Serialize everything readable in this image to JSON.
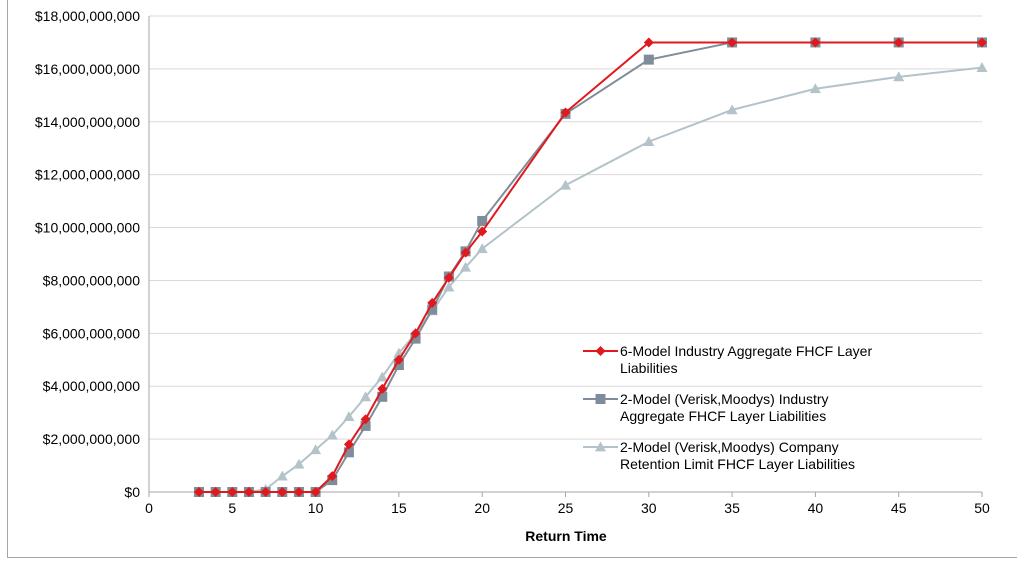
{
  "chart_data": {
    "type": "line",
    "title": "",
    "xlabel": "Return Time",
    "ylabel": "",
    "xlim": [
      0,
      50
    ],
    "ylim": [
      0,
      18000000000
    ],
    "x_ticks": [
      "0",
      "5",
      "10",
      "15",
      "20",
      "25",
      "30",
      "35",
      "40",
      "45",
      "50"
    ],
    "y_ticks": [
      "$0",
      "$2,000,000,000",
      "$4,000,000,000",
      "$6,000,000,000",
      "$8,000,000,000",
      "$10,000,000,000",
      "$12,000,000,000",
      "$14,000,000,000",
      "$16,000,000,000",
      "$18,000,000,000"
    ],
    "grid": "horizontal",
    "legend_position": "bottom-right",
    "series": [
      {
        "name": "6-Model Industry Aggregate FHCF Layer Liabilities",
        "name_lines": [
          "6-Model Industry Aggregate FHCF Layer",
          "Liabilities"
        ],
        "color": "#e0191f",
        "marker": "diamond",
        "x": [
          3,
          4,
          5,
          6,
          7,
          8,
          9,
          10,
          11,
          12,
          13,
          14,
          15,
          16,
          17,
          18,
          19,
          20,
          25,
          30,
          35,
          40,
          45,
          50
        ],
        "y": [
          0,
          0,
          0,
          0,
          0,
          0,
          0,
          0,
          600000000,
          1800000000,
          2750000000,
          3900000000,
          5000000000,
          6000000000,
          7150000000,
          8100000000,
          9050000000,
          9850000000,
          14350000000,
          17000000000,
          17000000000,
          17000000000,
          17000000000,
          17000000000
        ]
      },
      {
        "name": "2-Model (Verisk,Moodys) Industry Aggregate FHCF Layer Liabilities",
        "name_lines": [
          "2-Model (Verisk,Moodys) Industry",
          "Aggregate FHCF Layer Liabilities"
        ],
        "color": "#7f8c99",
        "marker": "square",
        "x": [
          3,
          4,
          5,
          6,
          7,
          8,
          9,
          10,
          11,
          12,
          13,
          14,
          15,
          16,
          17,
          18,
          19,
          20,
          25,
          30,
          35,
          40,
          45,
          50
        ],
        "y": [
          0,
          0,
          0,
          0,
          0,
          0,
          0,
          0,
          450000000,
          1500000000,
          2500000000,
          3600000000,
          4800000000,
          5800000000,
          6900000000,
          8150000000,
          9100000000,
          10250000000,
          14300000000,
          16350000000,
          17000000000,
          17000000000,
          17000000000,
          17000000000
        ]
      },
      {
        "name": "2-Model (Verisk,Moodys) Company Retention Limit FHCF Layer Liabilities",
        "name_lines": [
          "2-Model (Verisk,Moodys) Company",
          "Retention Limit FHCF Layer Liabilities"
        ],
        "color": "#b3c3c9",
        "marker": "triangle",
        "x": [
          3,
          4,
          5,
          6,
          7,
          8,
          9,
          10,
          11,
          12,
          13,
          14,
          15,
          16,
          17,
          18,
          19,
          20,
          25,
          30,
          35,
          40,
          45,
          50
        ],
        "y": [
          0,
          0,
          0,
          0,
          100000000,
          600000000,
          1050000000,
          1600000000,
          2150000000,
          2850000000,
          3600000000,
          4350000000,
          5250000000,
          6000000000,
          6850000000,
          7750000000,
          8500000000,
          9200000000,
          11600000000,
          13250000000,
          14450000000,
          15250000000,
          15700000000,
          16050000000
        ]
      }
    ]
  }
}
